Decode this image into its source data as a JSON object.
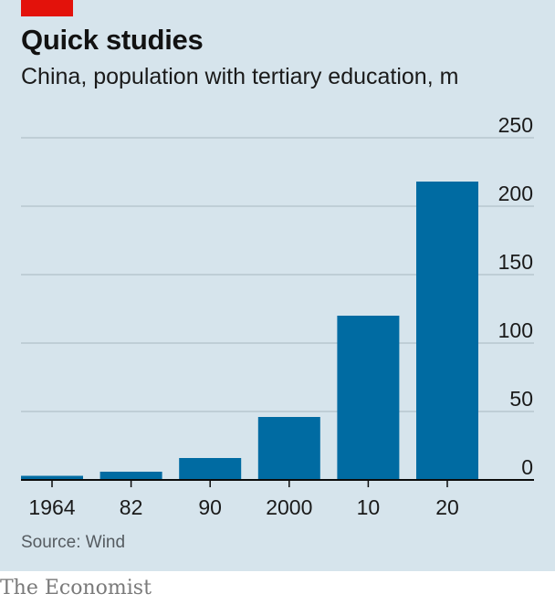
{
  "header": {
    "title": "Quick studies",
    "subtitle": "China, population with tertiary education, m"
  },
  "source": "Source: Wind",
  "brand": "The Economist",
  "colors": {
    "background": "#d6e4ec",
    "bar": "#006ba2",
    "accent_tag": "#e3120b",
    "gridline": "#b7c6cf",
    "axis": "#0c0c0c"
  },
  "chart_data": {
    "type": "bar",
    "title": "Quick studies",
    "subtitle": "China, population with tertiary education, m",
    "categories": [
      "1964",
      "82",
      "90",
      "2000",
      "10",
      "20"
    ],
    "values": [
      3,
      6,
      16,
      46,
      120,
      218
    ],
    "ylim": [
      0,
      250
    ],
    "yticks": [
      0,
      50,
      100,
      150,
      200,
      250
    ],
    "xlabel": "",
    "ylabel": "",
    "y_axis_side": "right",
    "grid": true
  }
}
